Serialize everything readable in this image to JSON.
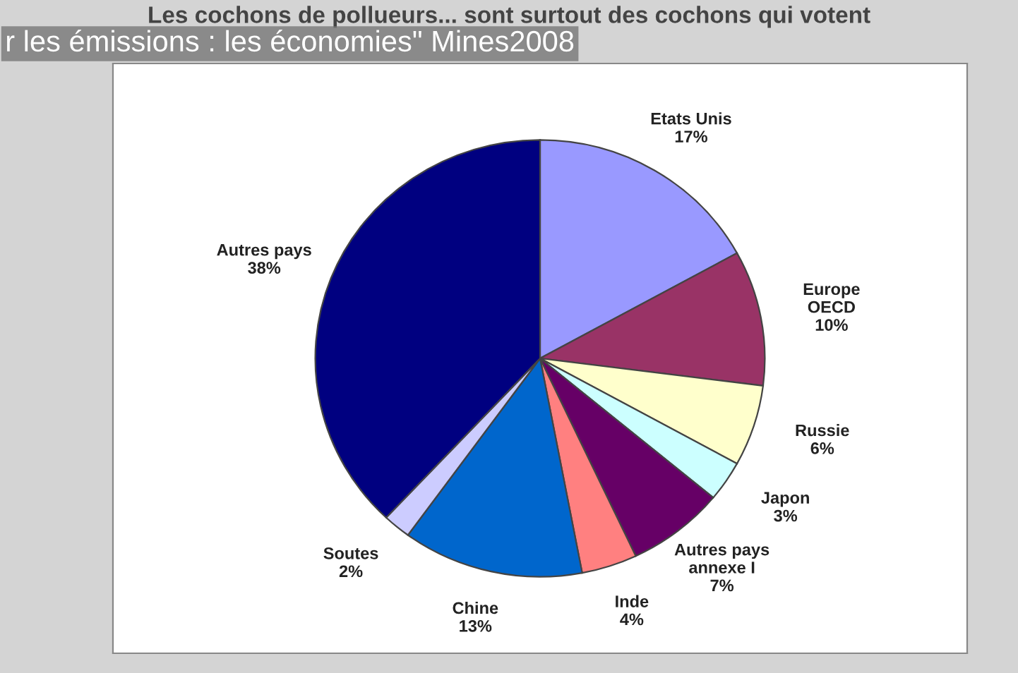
{
  "chart_data": {
    "type": "pie",
    "title": "Les cochons de pollueurs... sont surtout des cochons qui votent",
    "annotations": [
      "r les émissions : les économies\" Mines2008"
    ],
    "categories": [
      "Etats Unis",
      "Europe\nOECD",
      "Russie",
      "Japon",
      "Autres pays\nannexe I",
      "Inde",
      "Chine",
      "Soutes",
      "Autres pays"
    ],
    "values": [
      17,
      10,
      6,
      3,
      7,
      4,
      13,
      2,
      38
    ],
    "value_labels": [
      "17%",
      "10%",
      "6%",
      "3%",
      "7%",
      "4%",
      "13%",
      "2%",
      "38%"
    ],
    "colors": [
      "#9999ff",
      "#993366",
      "#ffffcc",
      "#ccffff",
      "#660066",
      "#ff8080",
      "#0066cc",
      "#ccccff",
      "#000080"
    ]
  }
}
